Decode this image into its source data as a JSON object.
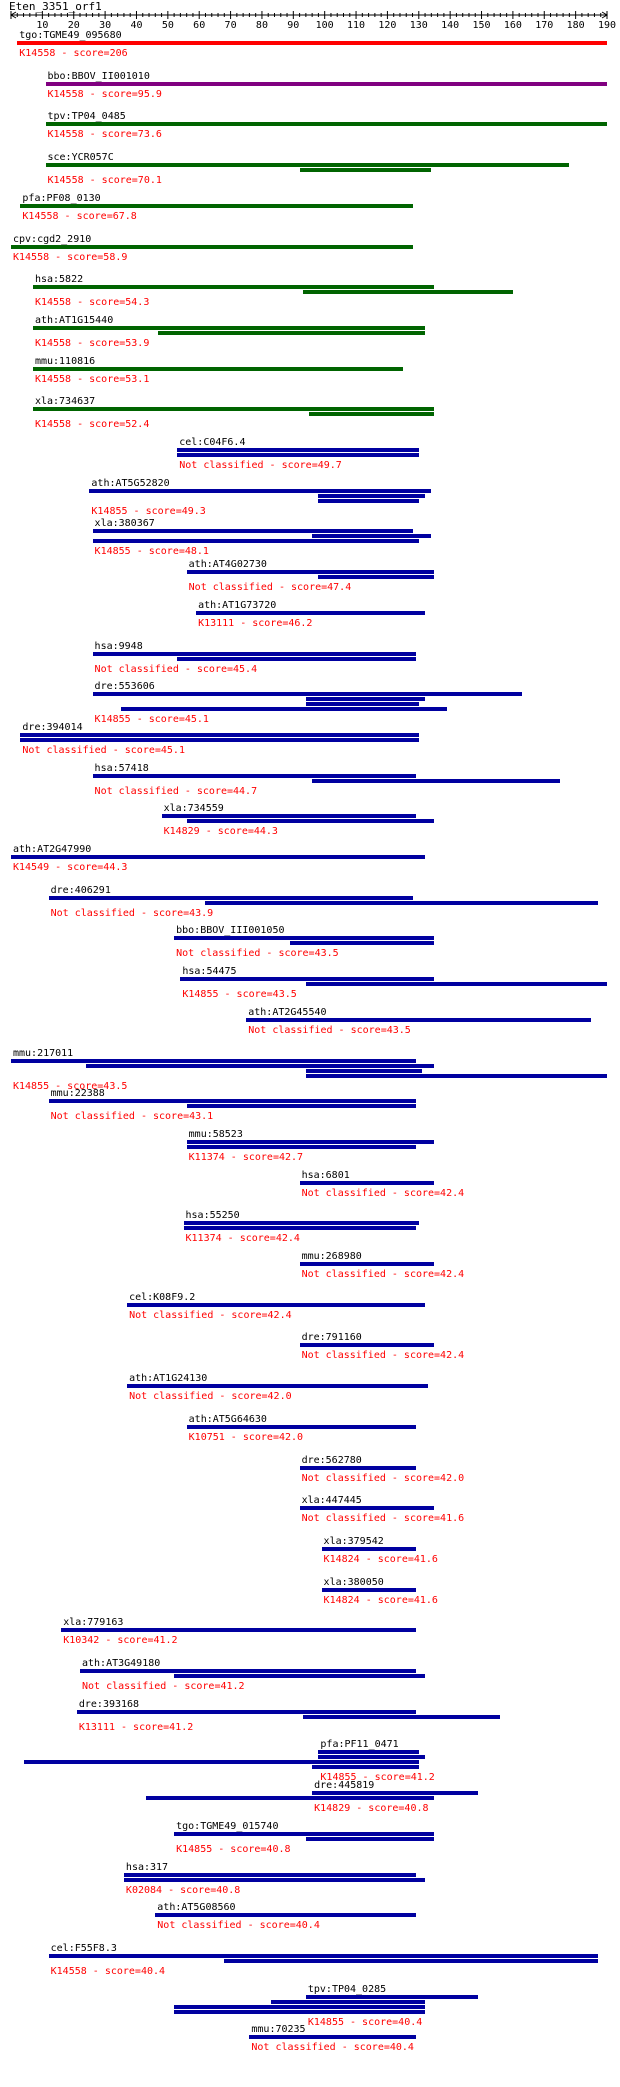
{
  "title": "Eten_3351_orf1",
  "ruler": {
    "min": 0,
    "max": 190,
    "labels": [
      "10",
      "20",
      "30",
      "40",
      "50",
      "60",
      "70",
      "80",
      "90",
      "100",
      "110",
      "120",
      "130",
      "140",
      "150",
      "160",
      "170",
      "180",
      "190"
    ],
    "colors": {
      "axis": "#000000"
    }
  },
  "colors": {
    "red": "#ff0000",
    "purple": "#800080",
    "green": "#006400",
    "blue": "#0000a0",
    "label": "#000000",
    "annotation": "#ff0000"
  },
  "hits": [
    {
      "name": "tgo:TGME49_095680",
      "annotation": "K14558 - score=206",
      "color": "red",
      "segments": [
        [
          2,
          190
        ]
      ]
    },
    {
      "name": "bbo:BBOV_II001010",
      "annotation": "K14558 - score=95.9",
      "color": "purple",
      "segments": [
        [
          11,
          190
        ]
      ]
    },
    {
      "name": "tpv:TP04_0485",
      "annotation": "K14558 - score=73.6",
      "color": "green",
      "segments": [
        [
          11,
          190
        ]
      ]
    },
    {
      "name": "sce:YCR057C",
      "annotation": "K14558 - score=70.1",
      "color": "green",
      "segments": [
        [
          11,
          178
        ],
        [
          92,
          134
        ]
      ]
    },
    {
      "name": "pfa:PF08_0130",
      "annotation": "K14558 - score=67.8",
      "color": "green",
      "segments": [
        [
          3,
          128
        ]
      ]
    },
    {
      "name": "cpv:cgd2_2910",
      "annotation": "K14558 - score=58.9",
      "color": "green",
      "segments": [
        [
          0,
          128
        ]
      ]
    },
    {
      "name": "hsa:5822",
      "annotation": "K14558 - score=54.3",
      "color": "green",
      "segments": [
        [
          7,
          135
        ],
        [
          93,
          160
        ]
      ]
    },
    {
      "name": "ath:AT1G15440",
      "annotation": "K14558 - score=53.9",
      "color": "green",
      "segments": [
        [
          7,
          132
        ],
        [
          47,
          132
        ]
      ]
    },
    {
      "name": "mmu:110816",
      "annotation": "K14558 - score=53.1",
      "color": "green",
      "segments": [
        [
          7,
          125
        ]
      ]
    },
    {
      "name": "xla:734637",
      "annotation": "K14558 - score=52.4",
      "color": "green",
      "segments": [
        [
          7,
          135
        ],
        [
          95,
          135
        ]
      ]
    },
    {
      "name": "cel:C04F6.4",
      "annotation": "Not classified - score=49.7",
      "color": "blue",
      "segments": [
        [
          53,
          130
        ],
        [
          53,
          130
        ]
      ]
    },
    {
      "name": "ath:AT5G52820",
      "annotation": "K14855 - score=49.3",
      "color": "blue",
      "segments": [
        [
          25,
          134
        ],
        [
          98,
          132
        ],
        [
          98,
          130
        ]
      ]
    },
    {
      "name": "xla:380367",
      "annotation": "K14855 - score=48.1",
      "color": "blue",
      "segments": [
        [
          26,
          128
        ],
        [
          96,
          134
        ],
        [
          26,
          130
        ]
      ]
    },
    {
      "name": "ath:AT4G02730",
      "annotation": "Not classified - score=47.4",
      "color": "blue",
      "segments": [
        [
          56,
          135
        ],
        [
          98,
          135
        ]
      ]
    },
    {
      "name": "ath:AT1G73720",
      "annotation": "K13111 - score=46.2",
      "color": "blue",
      "segments": [
        [
          59,
          132
        ]
      ]
    },
    {
      "name": "hsa:9948",
      "annotation": "Not classified - score=45.4",
      "color": "blue",
      "segments": [
        [
          26,
          129
        ],
        [
          53,
          129
        ]
      ]
    },
    {
      "name": "dre:553606",
      "annotation": "K14855 - score=45.1",
      "color": "blue",
      "segments": [
        [
          26,
          163
        ],
        [
          94,
          132
        ],
        [
          94,
          130
        ],
        [
          35,
          139
        ]
      ]
    },
    {
      "name": "dre:394014",
      "annotation": "Not classified - score=45.1",
      "color": "blue",
      "segments": [
        [
          3,
          130
        ],
        [
          3,
          130
        ]
      ]
    },
    {
      "name": "hsa:57418",
      "annotation": "Not classified - score=44.7",
      "color": "blue",
      "segments": [
        [
          26,
          129
        ],
        [
          96,
          175
        ]
      ]
    },
    {
      "name": "xla:734559",
      "annotation": "K14829 - score=44.3",
      "color": "blue",
      "segments": [
        [
          48,
          129
        ],
        [
          56,
          135
        ]
      ]
    },
    {
      "name": "ath:AT2G47990",
      "annotation": "K14549 - score=44.3",
      "color": "blue",
      "segments": [
        [
          0,
          132
        ]
      ]
    },
    {
      "name": "dre:406291",
      "annotation": "Not classified - score=43.9",
      "color": "blue",
      "segments": [
        [
          12,
          128
        ],
        [
          62,
          187
        ]
      ]
    },
    {
      "name": "bbo:BBOV_III001050",
      "annotation": "Not classified - score=43.5",
      "color": "blue",
      "segments": [
        [
          52,
          135
        ],
        [
          89,
          135
        ]
      ]
    },
    {
      "name": "hsa:54475",
      "annotation": "K14855 - score=43.5",
      "color": "blue",
      "segments": [
        [
          54,
          135
        ],
        [
          94,
          190
        ]
      ]
    },
    {
      "name": "ath:AT2G45540",
      "annotation": "Not classified - score=43.5",
      "color": "blue",
      "segments": [
        [
          75,
          185
        ]
      ]
    },
    {
      "name": "mmu:217011",
      "annotation": "K14855 - score=43.5",
      "color": "blue",
      "segments": [
        [
          0,
          129
        ],
        [
          24,
          135
        ],
        [
          94,
          131
        ],
        [
          94,
          190
        ]
      ]
    },
    {
      "name": "mmu:22388",
      "annotation": "Not classified - score=43.1",
      "color": "blue",
      "segments": [
        [
          12,
          129
        ],
        [
          56,
          129
        ]
      ]
    },
    {
      "name": "mmu:58523",
      "annotation": "K11374 - score=42.7",
      "color": "blue",
      "segments": [
        [
          56,
          135
        ],
        [
          56,
          129
        ]
      ]
    },
    {
      "name": "hsa:6801",
      "annotation": "Not classified - score=42.4",
      "color": "blue",
      "segments": [
        [
          92,
          135
        ]
      ]
    },
    {
      "name": "hsa:55250",
      "annotation": "K11374 - score=42.4",
      "color": "blue",
      "segments": [
        [
          55,
          130
        ],
        [
          55,
          129
        ]
      ]
    },
    {
      "name": "mmu:268980",
      "annotation": "Not classified - score=42.4",
      "color": "blue",
      "segments": [
        [
          92,
          135
        ]
      ]
    },
    {
      "name": "cel:K08F9.2",
      "annotation": "Not classified - score=42.4",
      "color": "blue",
      "segments": [
        [
          37,
          132
        ]
      ]
    },
    {
      "name": "dre:791160",
      "annotation": "Not classified - score=42.4",
      "color": "blue",
      "segments": [
        [
          92,
          135
        ]
      ]
    },
    {
      "name": "ath:AT1G24130",
      "annotation": "Not classified - score=42.0",
      "color": "blue",
      "segments": [
        [
          37,
          133
        ]
      ]
    },
    {
      "name": "ath:AT5G64630",
      "annotation": "K10751 - score=42.0",
      "color": "blue",
      "segments": [
        [
          56,
          129
        ]
      ]
    },
    {
      "name": "dre:562780",
      "annotation": "Not classified - score=42.0",
      "color": "blue",
      "segments": [
        [
          92,
          129
        ]
      ]
    },
    {
      "name": "xla:447445",
      "annotation": "Not classified - score=41.6",
      "color": "blue",
      "segments": [
        [
          92,
          135
        ]
      ]
    },
    {
      "name": "xla:379542",
      "annotation": "K14824 - score=41.6",
      "color": "blue",
      "segments": [
        [
          99,
          129
        ]
      ]
    },
    {
      "name": "xla:380050",
      "annotation": "K14824 - score=41.6",
      "color": "blue",
      "segments": [
        [
          99,
          129
        ]
      ]
    },
    {
      "name": "xla:779163",
      "annotation": "K10342 - score=41.2",
      "color": "blue",
      "segments": [
        [
          16,
          129
        ]
      ]
    },
    {
      "name": "ath:AT3G49180",
      "annotation": "Not classified - score=41.2",
      "color": "blue",
      "segments": [
        [
          22,
          129
        ],
        [
          52,
          132
        ]
      ]
    },
    {
      "name": "dre:393168",
      "annotation": "K13111 - score=41.2",
      "color": "blue",
      "segments": [
        [
          21,
          129
        ],
        [
          93,
          156
        ]
      ]
    },
    {
      "name": "pfa:PF11_0471",
      "annotation": "K14855 - score=41.2",
      "color": "blue",
      "segments": [
        [
          98,
          130
        ],
        [
          98,
          132
        ],
        [
          4,
          130
        ],
        [
          96,
          130
        ]
      ]
    },
    {
      "name": "dre:445819",
      "annotation": "K14829 - score=40.8",
      "color": "blue",
      "segments": [
        [
          96,
          149
        ],
        [
          43,
          135
        ]
      ]
    },
    {
      "name": "tgo:TGME49_015740",
      "annotation": "K14855 - score=40.8",
      "color": "blue",
      "segments": [
        [
          52,
          135
        ],
        [
          94,
          135
        ]
      ]
    },
    {
      "name": "hsa:317",
      "annotation": "K02084 - score=40.8",
      "color": "blue",
      "segments": [
        [
          36,
          129
        ],
        [
          36,
          132
        ]
      ]
    },
    {
      "name": "ath:AT5G08560",
      "annotation": "Not classified - score=40.4",
      "color": "blue",
      "segments": [
        [
          46,
          129
        ]
      ]
    },
    {
      "name": "cel:F55F8.3",
      "annotation": "K14558 - score=40.4",
      "color": "blue",
      "segments": [
        [
          12,
          187
        ],
        [
          68,
          187
        ]
      ]
    },
    {
      "name": "tpv:TP04_0285",
      "annotation": "K14855 - score=40.4",
      "color": "blue",
      "segments": [
        [
          94,
          149
        ],
        [
          83,
          132
        ],
        [
          52,
          132
        ],
        [
          52,
          132
        ]
      ]
    },
    {
      "name": "mmu:70235",
      "annotation": "Not classified - score=40.4",
      "color": "blue",
      "segments": [
        [
          76,
          129
        ]
      ]
    }
  ]
}
